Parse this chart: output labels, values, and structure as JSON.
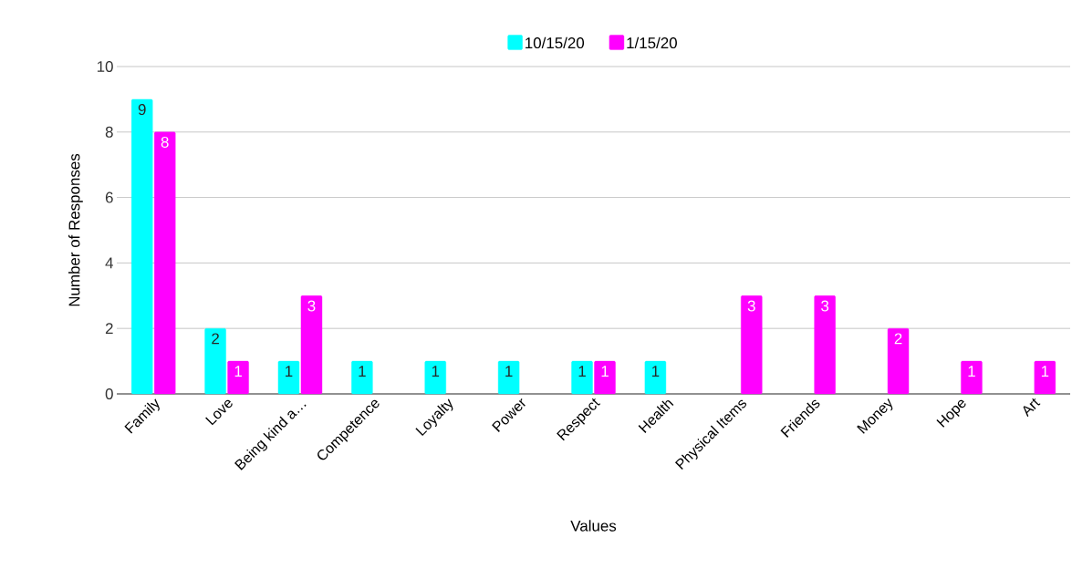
{
  "chart_data": {
    "type": "bar",
    "xlabel": "Values",
    "ylabel": "Number of Responses",
    "categories": [
      "Family",
      "Love",
      "Being kind a…",
      "Competence",
      "Loyalty",
      "Power",
      "Respect",
      "Health",
      "Physical Items",
      "Friends",
      "Money",
      "Hope",
      "Art"
    ],
    "series": [
      {
        "name": "10/15/20",
        "color": "#00ffff",
        "values": [
          9,
          2,
          1,
          1,
          1,
          1,
          1,
          1,
          null,
          null,
          null,
          null,
          null
        ]
      },
      {
        "name": "1/15/20",
        "color": "#ff00ff",
        "values": [
          8,
          1,
          3,
          null,
          null,
          null,
          1,
          null,
          3,
          3,
          2,
          1,
          1
        ]
      }
    ],
    "ylim": [
      0,
      10
    ],
    "yticks": [
      0,
      2,
      4,
      6,
      8,
      10
    ],
    "grid": "y",
    "legend": "top",
    "data_labels": true
  }
}
